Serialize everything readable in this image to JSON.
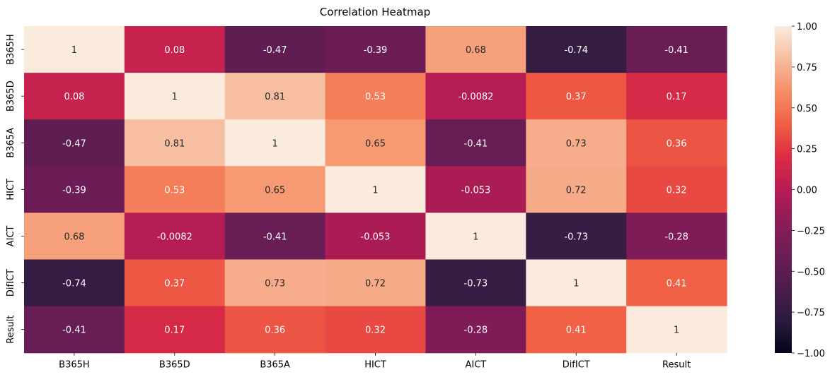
{
  "chart_data": {
    "type": "heatmap",
    "title": "Correlation Heatmap",
    "xlabel": "",
    "ylabel": "",
    "x_categories": [
      "B365H",
      "B365D",
      "B365A",
      "HICT",
      "AICT",
      "DifICT",
      "Result"
    ],
    "y_categories": [
      "B365H",
      "B365D",
      "B365A",
      "HICT",
      "AICT",
      "DifICT",
      "Result"
    ],
    "values": [
      [
        1,
        0.08,
        -0.47,
        -0.39,
        0.68,
        -0.74,
        -0.41
      ],
      [
        0.08,
        1,
        0.81,
        0.53,
        -0.0082,
        0.37,
        0.17
      ],
      [
        -0.47,
        0.81,
        1,
        0.65,
        -0.41,
        0.73,
        0.36
      ],
      [
        -0.39,
        0.53,
        0.65,
        1,
        -0.053,
        0.72,
        0.32
      ],
      [
        0.68,
        -0.0082,
        -0.41,
        -0.053,
        1,
        -0.73,
        -0.28
      ],
      [
        -0.74,
        0.37,
        0.73,
        0.72,
        -0.73,
        1,
        0.41
      ],
      [
        -0.41,
        0.17,
        0.36,
        0.32,
        -0.28,
        0.41,
        1
      ]
    ],
    "cell_labels": [
      [
        "1",
        "0.08",
        "-0.47",
        "-0.39",
        "0.68",
        "-0.74",
        "-0.41"
      ],
      [
        "0.08",
        "1",
        "0.81",
        "0.53",
        "-0.0082",
        "0.37",
        "0.17"
      ],
      [
        "-0.47",
        "0.81",
        "1",
        "0.65",
        "-0.41",
        "0.73",
        "0.36"
      ],
      [
        "-0.39",
        "0.53",
        "0.65",
        "1",
        "-0.053",
        "0.72",
        "0.32"
      ],
      [
        "0.68",
        "-0.0082",
        "-0.41",
        "-0.053",
        "1",
        "-0.73",
        "-0.28"
      ],
      [
        "-0.74",
        "0.37",
        "0.73",
        "0.72",
        "-0.73",
        "1",
        "0.41"
      ],
      [
        "-0.41",
        "0.17",
        "0.36",
        "0.32",
        "-0.28",
        "0.41",
        "1"
      ]
    ],
    "colorbar": {
      "range": [
        -1,
        1
      ],
      "ticks": [
        1.0,
        0.75,
        0.5,
        0.25,
        0.0,
        -0.25,
        -0.5,
        -0.75,
        -1.0
      ],
      "tick_labels": [
        "1.00",
        "0.75",
        "0.50",
        "0.25",
        "0.00",
        "−0.25",
        "−0.50",
        "−0.75",
        "−1.00"
      ],
      "colormap": "rocket"
    },
    "grid": false,
    "legend": "colorbar-right"
  }
}
